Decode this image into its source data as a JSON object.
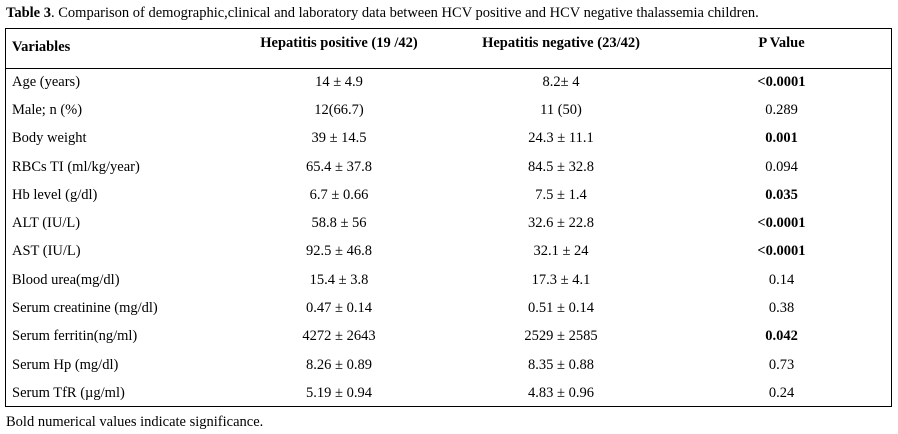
{
  "caption": {
    "lead": "Table 3",
    "text": ". Comparison of demographic,clinical and laboratory data between HCV positive and HCV negative thalassemia children."
  },
  "table": {
    "headers": [
      "Variables",
      "Hepatitis positive (19 /42)",
      "Hepatitis negative (23/42)",
      "P Value"
    ],
    "rows": [
      {
        "variable": "Age (years)",
        "positive": "14 ± 4.9",
        "negative": "8.2± 4",
        "p": "<0.0001",
        "significant": true
      },
      {
        "variable": "Male; n (%)",
        "positive": "12(66.7)",
        "negative": "11 (50)",
        "p": "0.289",
        "significant": false
      },
      {
        "variable": "Body weight",
        "positive": "39 ± 14.5",
        "negative": "24.3 ± 11.1",
        "p": "0.001",
        "significant": true
      },
      {
        "variable": "RBCs TI (ml/kg/year)",
        "positive": "65.4 ± 37.8",
        "negative": "84.5 ± 32.8",
        "p": "0.094",
        "significant": false
      },
      {
        "variable": "Hb level (g/dl)",
        "positive": "6.7 ± 0.66",
        "negative": "7.5 ± 1.4",
        "p": "0.035",
        "significant": true
      },
      {
        "variable": "ALT (IU/L)",
        "positive": "58.8 ± 56",
        "negative": "32.6 ± 22.8",
        "p": "<0.0001",
        "significant": true
      },
      {
        "variable": "AST (IU/L)",
        "positive": "92.5 ± 46.8",
        "negative": "32.1 ± 24",
        "p": "<0.0001",
        "significant": true
      },
      {
        "variable": "Blood urea(mg/dl)",
        "positive": "15.4 ± 3.8",
        "negative": "17.3 ± 4.1",
        "p": "0.14",
        "significant": false
      },
      {
        "variable": "Serum creatinine (mg/dl)",
        "positive": "0.47 ± 0.14",
        "negative": "0.51 ± 0.14",
        "p": "0.38",
        "significant": false
      },
      {
        "variable": "Serum ferritin(ng/ml)",
        "positive": "4272 ± 2643",
        "negative": "2529 ± 2585",
        "p": "0.042",
        "significant": true
      },
      {
        "variable": "Serum Hp (mg/dl)",
        "positive": "8.26 ± 0.89",
        "negative": "8.35 ± 0.88",
        "p": "0.73",
        "significant": false
      },
      {
        "variable": "Serum TfR (µg/ml)",
        "positive": "5.19 ± 0.94",
        "negative": "4.83 ± 0.96",
        "p": "0.24",
        "significant": false
      }
    ]
  },
  "footnote": "Bold numerical values indicate significance."
}
